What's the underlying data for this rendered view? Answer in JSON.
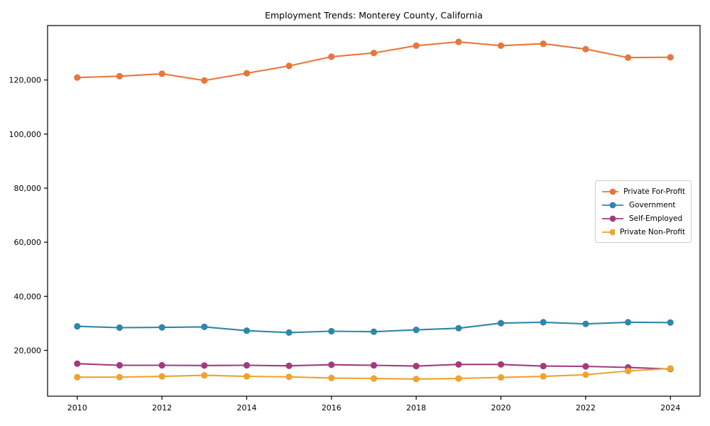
{
  "figure": {
    "background": "#ffffff"
  },
  "chart_data": {
    "type": "line",
    "title": "Employment Trends: Monterey County, California",
    "xlabel": "",
    "ylabel": "",
    "grid": false,
    "x": [
      2010,
      2011,
      2012,
      2013,
      2014,
      2015,
      2016,
      2017,
      2018,
      2019,
      2020,
      2021,
      2022,
      2023,
      2024
    ],
    "series": [
      {
        "name": "Private For-Profit",
        "color": "#e8763b",
        "values": [
          120900,
          121400,
          122300,
          119800,
          122500,
          125200,
          128600,
          130000,
          132700,
          134100,
          132700,
          133400,
          131400,
          128300,
          128400
        ]
      },
      {
        "name": "Government",
        "color": "#2f87a8",
        "values": [
          28900,
          28400,
          28500,
          28700,
          27300,
          26600,
          27100,
          26900,
          27600,
          28200,
          30100,
          30400,
          29800,
          30400,
          30300
        ]
      },
      {
        "name": "Self-Employed",
        "color": "#a23b7c",
        "values": [
          15100,
          14500,
          14500,
          14400,
          14500,
          14300,
          14700,
          14500,
          14200,
          14800,
          14800,
          14200,
          14100,
          13700,
          13100
        ]
      },
      {
        "name": "Private Non-Profit",
        "color": "#efa32f",
        "values": [
          10100,
          10100,
          10400,
          10800,
          10400,
          10200,
          9800,
          9600,
          9400,
          9600,
          10000,
          10400,
          11000,
          12400,
          13300
        ]
      }
    ],
    "xlim": [
      2009.3,
      2024.7
    ],
    "ylim": [
      3070,
      140130
    ],
    "xticks": [
      {
        "v": 2010,
        "label": "2010"
      },
      {
        "v": 2012,
        "label": "2012"
      },
      {
        "v": 2014,
        "label": "2014"
      },
      {
        "v": 2016,
        "label": "2016"
      },
      {
        "v": 2018,
        "label": "2018"
      },
      {
        "v": 2020,
        "label": "2020"
      },
      {
        "v": 2022,
        "label": "2022"
      },
      {
        "v": 2024,
        "label": "2024"
      }
    ],
    "yticks": [
      {
        "v": 20000,
        "label": "20,000"
      },
      {
        "v": 40000,
        "label": "40,000"
      },
      {
        "v": 60000,
        "label": "60,000"
      },
      {
        "v": 80000,
        "label": "80,000"
      },
      {
        "v": 100000,
        "label": "100,000"
      },
      {
        "v": 120000,
        "label": "120,000"
      }
    ],
    "legend": {
      "position": "center-right"
    },
    "axis_color": "#000000",
    "tick_label_color": "#000000"
  }
}
